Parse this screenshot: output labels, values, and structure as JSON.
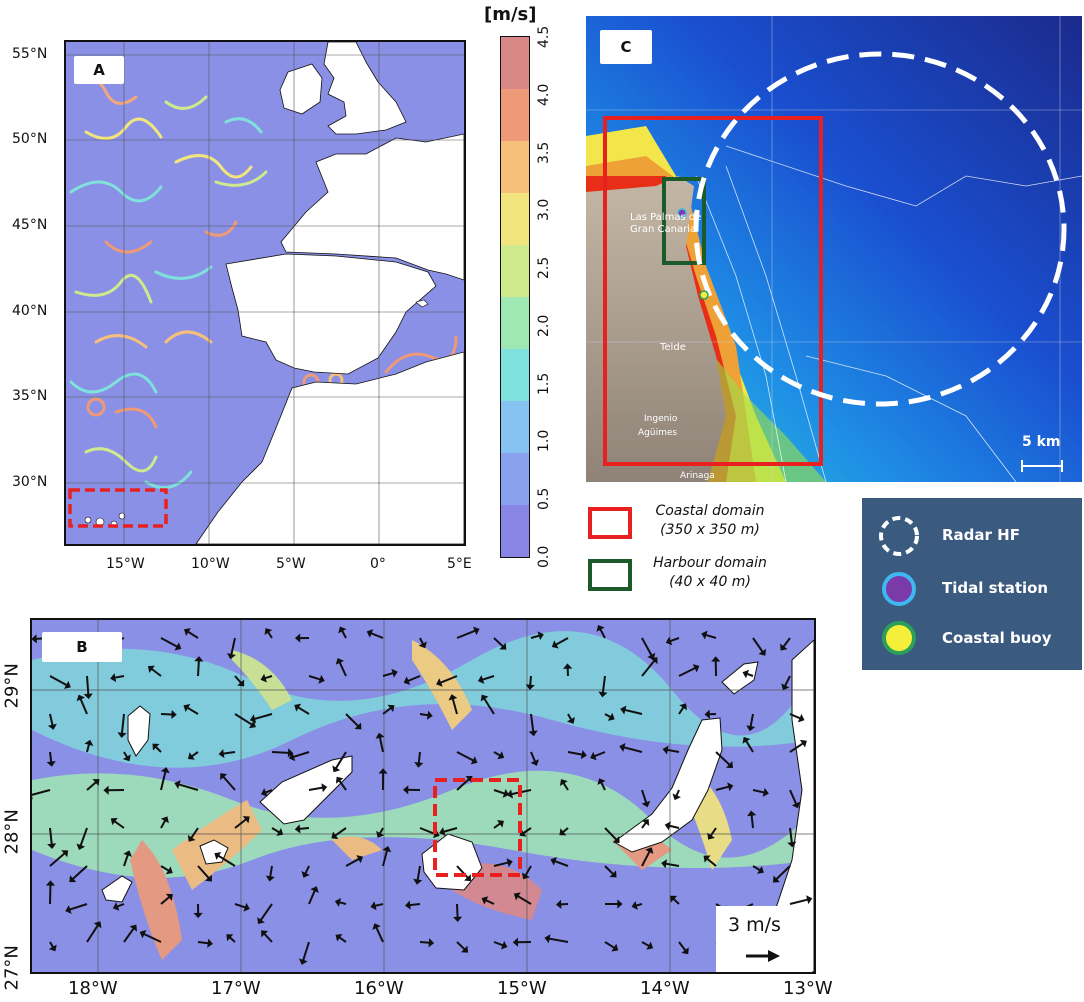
{
  "panel_a": {
    "label": "A",
    "lat_ticks": [
      "55°N",
      "50°N",
      "45°N",
      "40°N",
      "35°N",
      "30°N"
    ],
    "lon_ticks": [
      "15°W",
      "10°W",
      "5°W",
      "0°",
      "5°E"
    ],
    "colorbar": {
      "unit": "[m/s]",
      "ticks": [
        "4.5",
        "4.0",
        "3.5",
        "3.0",
        "2.5",
        "2.0",
        "1.5",
        "1.0",
        "0.5",
        "0.0"
      ],
      "colors": [
        "#d98888",
        "#ee9a78",
        "#f6c07a",
        "#f3e57d",
        "#cfe98d",
        "#9fe8b4",
        "#7fe1dc",
        "#86c3f3",
        "#8aa2ee",
        "#8a86e6"
      ]
    }
  },
  "panel_b": {
    "label": "B",
    "lat_ticks": [
      "29°N",
      "28°N",
      "27°N"
    ],
    "lon_ticks": [
      "18°W",
      "17°W",
      "16°W",
      "15°W",
      "14°W",
      "13°W"
    ],
    "scale_label": "3 m/s"
  },
  "panel_c": {
    "label": "C",
    "scale_label": "5 km",
    "map_labels": [
      "Las Palmas de Gran Canaria",
      "Telde",
      "Ingenio",
      "Agüimes",
      "Arinaga"
    ]
  },
  "legend_domains": [
    {
      "name": "Coastal domain",
      "detail": "(350 x 350 m)",
      "color": "#e8201f"
    },
    {
      "name": "Harbour domain",
      "detail": "(40 x 40 m)",
      "color": "#1d5a2a"
    }
  ],
  "legend_instruments": [
    {
      "name": "Radar HF",
      "icon": "dashed-circle-icon"
    },
    {
      "name": "Tidal station",
      "icon": "purple-dot-icon"
    },
    {
      "name": "Coastal buoy",
      "icon": "yellow-dot-icon"
    }
  ]
}
